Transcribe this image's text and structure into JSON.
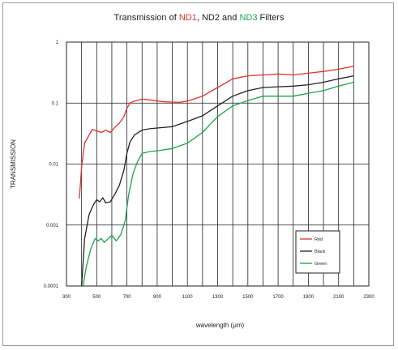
{
  "title_parts": [
    {
      "text": "Transmission of ",
      "color": "#222222"
    },
    {
      "text": "ND1",
      "color": "#e0322f"
    },
    {
      "text": ", ND2 and ",
      "color": "#222222"
    },
    {
      "text": "ND3",
      "color": "#1aa34a"
    },
    {
      "text": " Filters",
      "color": "#222222"
    }
  ],
  "chart_data": {
    "type": "line",
    "title": "Transmission of ND1, ND2 and ND3 Filters",
    "xlabel": "wavelength (μm)",
    "ylabel": "TRANSMISSION",
    "xlim": [
      300,
      2300
    ],
    "ylim": [
      0.0001,
      1
    ],
    "yscale": "log",
    "grid": true,
    "legend_position": "bottom-right",
    "x_ticks": [
      "300",
      "500",
      "700",
      "900",
      "1100",
      "1300",
      "1500",
      "1700",
      "1900",
      "2100",
      "2300"
    ],
    "x_tick_values": [
      300,
      500,
      700,
      900,
      1100,
      1300,
      1500,
      1700,
      1900,
      2100,
      2300
    ],
    "y_ticks": [
      "1",
      "0.1",
      "0.01",
      "0.001",
      "0.0001"
    ],
    "y_tick_values": [
      1,
      0.1,
      0.01,
      0.001,
      0.0001
    ],
    "series": [
      {
        "name": "Red",
        "color": "#e0322f",
        "x": [
          385,
          400,
          420,
          440,
          470,
          500,
          530,
          560,
          590,
          620,
          650,
          680,
          700,
          720,
          750,
          800,
          850,
          900,
          950,
          1000,
          1050,
          1100,
          1150,
          1200,
          1300,
          1400,
          1500,
          1600,
          1700,
          1800,
          1900,
          2000,
          2100,
          2200
        ],
        "y": [
          0.0027,
          0.009,
          0.022,
          0.027,
          0.037,
          0.035,
          0.033,
          0.036,
          0.033,
          0.04,
          0.047,
          0.06,
          0.082,
          0.1,
          0.108,
          0.116,
          0.113,
          0.108,
          0.105,
          0.104,
          0.103,
          0.108,
          0.118,
          0.13,
          0.18,
          0.25,
          0.28,
          0.29,
          0.3,
          0.29,
          0.31,
          0.33,
          0.36,
          0.4
        ]
      },
      {
        "name": "Black",
        "color": "#222222",
        "x": [
          400,
          420,
          450,
          480,
          500,
          520,
          540,
          560,
          590,
          620,
          650,
          680,
          700,
          720,
          750,
          800,
          850,
          900,
          1000,
          1100,
          1200,
          1300,
          1400,
          1500,
          1600,
          1700,
          1800,
          1900,
          2000,
          2100,
          2200
        ],
        "y": [
          0.0001,
          0.0006,
          0.0015,
          0.0022,
          0.0026,
          0.0024,
          0.0028,
          0.0023,
          0.0024,
          0.0032,
          0.0045,
          0.008,
          0.015,
          0.023,
          0.03,
          0.036,
          0.038,
          0.039,
          0.041,
          0.05,
          0.062,
          0.09,
          0.13,
          0.16,
          0.18,
          0.185,
          0.19,
          0.2,
          0.22,
          0.25,
          0.28
        ]
      },
      {
        "name": "Green",
        "color": "#1aa34a",
        "x": [
          410,
          430,
          460,
          490,
          510,
          530,
          550,
          570,
          600,
          630,
          660,
          690,
          710,
          740,
          770,
          800,
          850,
          900,
          1000,
          1100,
          1200,
          1300,
          1400,
          1500,
          1600,
          1700,
          1800,
          1900,
          2000,
          2100,
          2200
        ],
        "y": [
          0.0001,
          0.0002,
          0.0004,
          0.0006,
          0.00055,
          0.0006,
          0.00052,
          0.00058,
          0.00068,
          0.00055,
          0.0007,
          0.0012,
          0.003,
          0.007,
          0.011,
          0.015,
          0.016,
          0.0165,
          0.018,
          0.022,
          0.033,
          0.06,
          0.09,
          0.11,
          0.13,
          0.13,
          0.13,
          0.145,
          0.16,
          0.19,
          0.22
        ]
      }
    ]
  }
}
